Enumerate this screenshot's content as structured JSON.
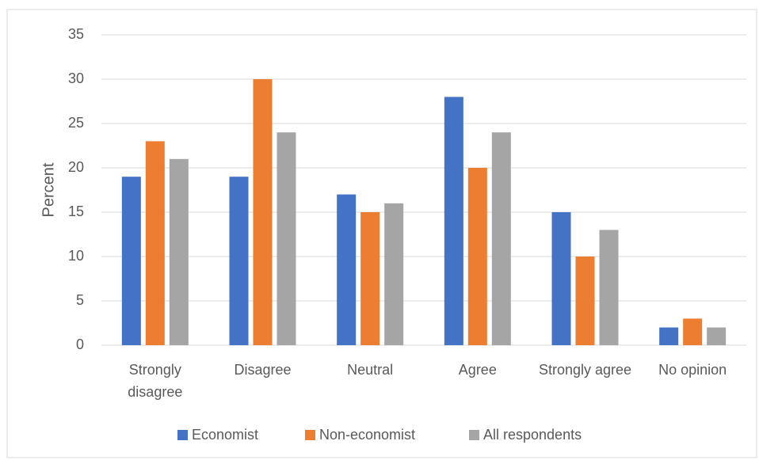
{
  "chart_data": {
    "type": "bar",
    "y_label": "Percent",
    "categories": [
      "Strongly disagree",
      "Disagree",
      "Neutral",
      "Agree",
      "Strongly agree",
      "No opinion"
    ],
    "series": [
      {
        "name": "Economist",
        "color": "#4472c4",
        "values": [
          19,
          19,
          17,
          28,
          15,
          2
        ]
      },
      {
        "name": "Non-economist",
        "color": "#ed7d31",
        "values": [
          23,
          30,
          15,
          20,
          10,
          3
        ]
      },
      {
        "name": "All respondents",
        "color": "#a5a5a5",
        "values": [
          21,
          24,
          16,
          24,
          13,
          2
        ]
      }
    ],
    "ylim": [
      0,
      35
    ],
    "yticks": [
      0,
      5,
      10,
      15,
      20,
      25,
      30,
      35
    ],
    "grid": true,
    "legend": "bottom"
  }
}
